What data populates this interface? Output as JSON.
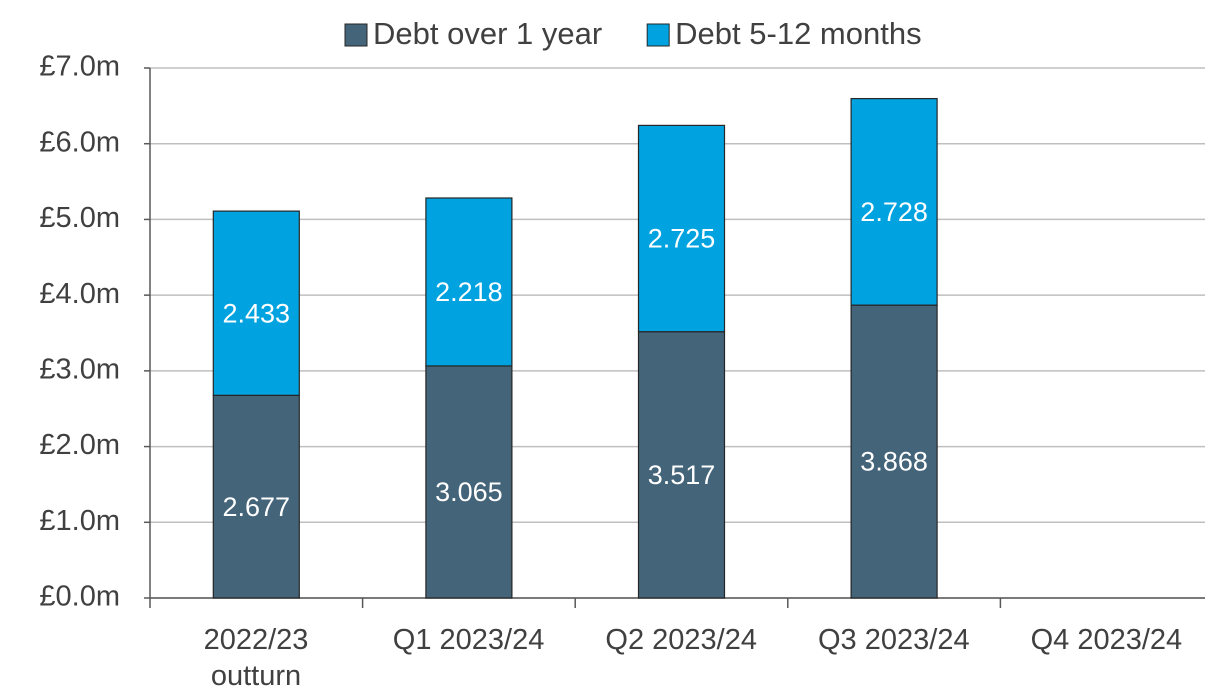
{
  "chart_data": {
    "type": "stacked_bar",
    "categories": [
      "2022/23\noutturn",
      "Q1 2023/24",
      "Q2 2023/24",
      "Q3 2023/24",
      "Q4 2023/24"
    ],
    "series": [
      {
        "name": "Debt over 1 year",
        "color": "#44647a",
        "values": [
          2.677,
          3.065,
          3.517,
          3.868,
          null
        ]
      },
      {
        "name": "Debt 5-12 months",
        "color": "#00a3e0",
        "values": [
          2.433,
          2.218,
          2.725,
          2.728,
          null
        ]
      }
    ],
    "ylim": [
      0,
      7
    ],
    "yticks": [
      {
        "value": 0,
        "label": "£0.0m"
      },
      {
        "value": 1,
        "label": "£1.0m"
      },
      {
        "value": 2,
        "label": "£2.0m"
      },
      {
        "value": 3,
        "label": "£3.0m"
      },
      {
        "value": 4,
        "label": "£4.0m"
      },
      {
        "value": 5,
        "label": "£5.0m"
      },
      {
        "value": 6,
        "label": "£6.0m"
      },
      {
        "value": 7,
        "label": "£7.0m"
      }
    ],
    "grid": true,
    "legend": "top"
  }
}
